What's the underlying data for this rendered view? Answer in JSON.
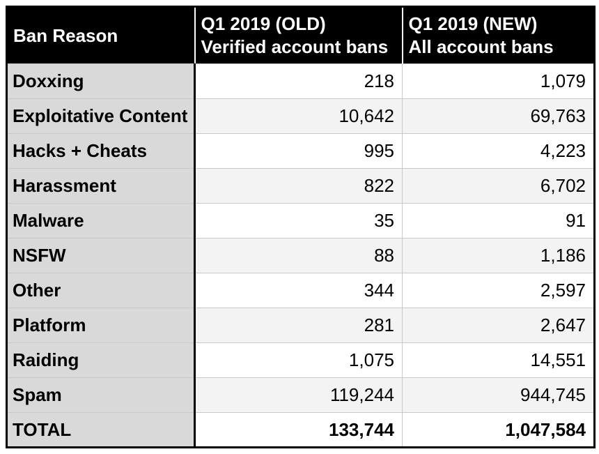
{
  "table": {
    "header": {
      "col_reason": {
        "line1": "Ban Reason"
      },
      "col_old": {
        "line1": "Q1 2019 (OLD)",
        "line2": "Verified account bans"
      },
      "col_new": {
        "line1": "Q1 2019 (NEW)",
        "line2": "All account bans"
      }
    },
    "rows": [
      {
        "reason": "Doxxing",
        "old": "218",
        "new": "1,079"
      },
      {
        "reason": "Exploitative Content",
        "old": "10,642",
        "new": "69,763"
      },
      {
        "reason": "Hacks + Cheats",
        "old": "995",
        "new": "4,223"
      },
      {
        "reason": "Harassment",
        "old": "822",
        "new": "6,702"
      },
      {
        "reason": "Malware",
        "old": "35",
        "new": "91"
      },
      {
        "reason": "NSFW",
        "old": "88",
        "new": "1,186"
      },
      {
        "reason": "Other",
        "old": "344",
        "new": "2,597"
      },
      {
        "reason": "Platform",
        "old": "281",
        "new": "2,647"
      },
      {
        "reason": "Raiding",
        "old": "1,075",
        "new": "14,551"
      },
      {
        "reason": "Spam",
        "old": "119,244",
        "new": "944,745"
      }
    ],
    "total": {
      "reason": "TOTAL",
      "old": "133,744",
      "new": "1,047,584"
    }
  },
  "colors": {
    "header_bg": "#000000",
    "header_text": "#ffffff",
    "label_column_bg": "#d9d9d9",
    "row_bg_white": "#ffffff",
    "row_bg_striped": "#f3f3f3",
    "grid_line": "#c8c8c8",
    "outer_border": "#000000"
  },
  "chart_data": {
    "type": "table",
    "title": "",
    "columns": [
      "Ban Reason",
      "Q1 2019 (OLD) Verified account bans",
      "Q1 2019 (NEW) All account bans"
    ],
    "categories": [
      "Doxxing",
      "Exploitative Content",
      "Hacks + Cheats",
      "Harassment",
      "Malware",
      "NSFW",
      "Other",
      "Platform",
      "Raiding",
      "Spam",
      "TOTAL"
    ],
    "series": [
      {
        "name": "Q1 2019 (OLD) Verified account bans",
        "values": [
          218,
          10642,
          995,
          822,
          35,
          88,
          344,
          281,
          1075,
          119244,
          133744
        ]
      },
      {
        "name": "Q1 2019 (NEW) All account bans",
        "values": [
          1079,
          69763,
          4223,
          6702,
          91,
          1186,
          2597,
          2647,
          14551,
          944745,
          1047584
        ]
      }
    ]
  }
}
